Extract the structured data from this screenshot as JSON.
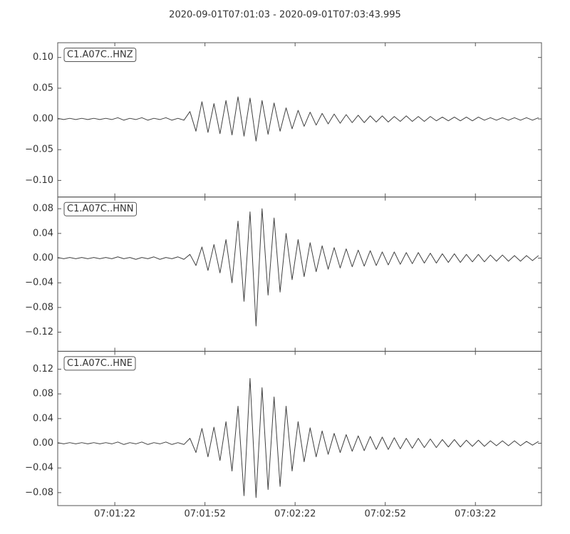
{
  "chart_data": {
    "type": "line",
    "title": "2020-09-01T07:01:03  -  2020-09-01T07:03:43.995",
    "color": "#404040",
    "xlim": [
      "07:01:03",
      "07:03:43.995"
    ],
    "xticks": [
      "07:01:22",
      "07:01:52",
      "07:02:22",
      "07:02:52",
      "07:03:22"
    ],
    "x": [
      "07:01:03",
      "07:01:05",
      "07:01:07",
      "07:01:09",
      "07:01:11",
      "07:01:13",
      "07:01:15",
      "07:01:17",
      "07:01:19",
      "07:01:21",
      "07:01:23",
      "07:01:25",
      "07:01:27",
      "07:01:29",
      "07:01:31",
      "07:01:33",
      "07:01:35",
      "07:01:37",
      "07:01:39",
      "07:01:41",
      "07:01:43",
      "07:01:45",
      "07:01:47",
      "07:01:49",
      "07:01:51",
      "07:01:53",
      "07:01:55",
      "07:01:57",
      "07:01:59",
      "07:02:01",
      "07:02:03",
      "07:02:05",
      "07:02:07",
      "07:02:09",
      "07:02:11",
      "07:02:13",
      "07:02:15",
      "07:02:17",
      "07:02:19",
      "07:02:21",
      "07:02:23",
      "07:02:25",
      "07:02:27",
      "07:02:29",
      "07:02:31",
      "07:02:33",
      "07:02:35",
      "07:02:37",
      "07:02:39",
      "07:02:41",
      "07:02:43",
      "07:02:45",
      "07:02:47",
      "07:02:49",
      "07:02:51",
      "07:02:53",
      "07:02:55",
      "07:02:57",
      "07:02:59",
      "07:03:01",
      "07:03:03",
      "07:03:05",
      "07:03:07",
      "07:03:09",
      "07:03:11",
      "07:03:13",
      "07:03:15",
      "07:03:17",
      "07:03:19",
      "07:03:21",
      "07:03:23",
      "07:03:25",
      "07:03:27",
      "07:03:29",
      "07:03:31",
      "07:03:33",
      "07:03:35",
      "07:03:37",
      "07:03:39",
      "07:03:41",
      "07:03:43"
    ],
    "series": [
      {
        "name": "C1.A07C..HNZ",
        "ylim": [
          -0.127,
          0.124
        ],
        "yticks": [
          {
            "value": 0.1,
            "label": "0.10"
          },
          0.05,
          {
            "value": 0,
            "label": "0.00"
          },
          {
            "value": -0.05,
            "label": "−0.05"
          },
          {
            "value": -0.1,
            "label": "−0.10"
          }
        ],
        "values": [
          0.001,
          -0.001,
          0.001,
          -0.001,
          0.001,
          -0.001,
          0.001,
          -0.001,
          0.001,
          -0.001,
          0.002,
          -0.002,
          0.001,
          -0.001,
          0.002,
          -0.002,
          0.001,
          -0.001,
          0.002,
          -0.002,
          0.001,
          -0.002,
          0.012,
          -0.02,
          0.028,
          -0.022,
          0.025,
          -0.024,
          0.03,
          -0.026,
          0.036,
          -0.028,
          0.034,
          -0.036,
          0.03,
          -0.025,
          0.026,
          -0.02,
          0.018,
          -0.016,
          0.014,
          -0.012,
          0.011,
          -0.01,
          0.009,
          -0.008,
          0.008,
          -0.007,
          0.007,
          -0.006,
          0.006,
          -0.006,
          0.005,
          -0.005,
          0.005,
          -0.005,
          0.004,
          -0.004,
          0.005,
          -0.004,
          0.004,
          -0.004,
          0.004,
          -0.003,
          0.003,
          -0.003,
          0.003,
          -0.003,
          0.003,
          -0.003,
          0.003,
          -0.002,
          0.002,
          -0.002,
          0.002,
          -0.002,
          0.002,
          -0.002,
          0.002,
          -0.002,
          0.002
        ]
      },
      {
        "name": "C1.A07C..HNN",
        "ylim": [
          -0.151,
          0.099
        ],
        "yticks": [
          0.08,
          0.04,
          {
            "value": 0,
            "label": "0.00"
          },
          {
            "value": -0.04,
            "label": "−0.04"
          },
          {
            "value": -0.08,
            "label": "−0.08"
          },
          {
            "value": -0.12,
            "label": "−0.12"
          }
        ],
        "values": [
          0.001,
          -0.001,
          0.001,
          -0.001,
          0.001,
          -0.001,
          0.001,
          -0.001,
          0.001,
          -0.001,
          0.002,
          -0.001,
          0.001,
          -0.002,
          0.001,
          -0.001,
          0.002,
          -0.002,
          0.001,
          -0.001,
          0.002,
          -0.002,
          0.006,
          -0.012,
          0.018,
          -0.02,
          0.022,
          -0.024,
          0.03,
          -0.04,
          0.06,
          -0.07,
          0.075,
          -0.11,
          0.08,
          -0.06,
          0.065,
          -0.055,
          0.04,
          -0.035,
          0.03,
          -0.03,
          0.025,
          -0.022,
          0.02,
          -0.018,
          0.017,
          -0.016,
          0.015,
          -0.014,
          0.013,
          -0.013,
          0.012,
          -0.012,
          0.01,
          -0.011,
          0.01,
          -0.01,
          0.009,
          -0.009,
          0.009,
          -0.008,
          0.008,
          -0.008,
          0.007,
          -0.007,
          0.007,
          -0.007,
          0.006,
          -0.006,
          0.006,
          -0.006,
          0.005,
          -0.005,
          0.005,
          -0.005,
          0.004,
          -0.005,
          0.004,
          -0.004,
          0.004
        ]
      },
      {
        "name": "C1.A07C..HNE",
        "ylim": [
          -0.101,
          0.149
        ],
        "yticks": [
          0.12,
          0.08,
          0.04,
          {
            "value": 0,
            "label": "0.00"
          },
          {
            "value": -0.04,
            "label": "−0.04"
          },
          {
            "value": -0.08,
            "label": "−0.08"
          }
        ],
        "values": [
          0.001,
          -0.001,
          0.001,
          -0.001,
          0.001,
          -0.001,
          0.001,
          -0.001,
          0.001,
          -0.001,
          0.002,
          -0.002,
          0.001,
          -0.001,
          0.002,
          -0.002,
          0.001,
          -0.001,
          0.002,
          -0.002,
          0.001,
          -0.002,
          0.008,
          -0.015,
          0.024,
          -0.022,
          0.026,
          -0.028,
          0.035,
          -0.045,
          0.06,
          -0.085,
          0.105,
          -0.088,
          0.09,
          -0.075,
          0.075,
          -0.07,
          0.06,
          -0.045,
          0.035,
          -0.03,
          0.025,
          -0.022,
          0.02,
          -0.018,
          0.016,
          -0.015,
          0.014,
          -0.013,
          0.012,
          -0.012,
          0.011,
          -0.01,
          0.01,
          -0.01,
          0.009,
          -0.009,
          0.008,
          -0.008,
          0.008,
          -0.007,
          0.007,
          -0.007,
          0.006,
          -0.006,
          0.006,
          -0.006,
          0.005,
          -0.005,
          0.005,
          -0.005,
          0.004,
          -0.004,
          0.004,
          -0.004,
          0.004,
          -0.004,
          0.003,
          -0.003,
          0.003
        ]
      }
    ]
  }
}
